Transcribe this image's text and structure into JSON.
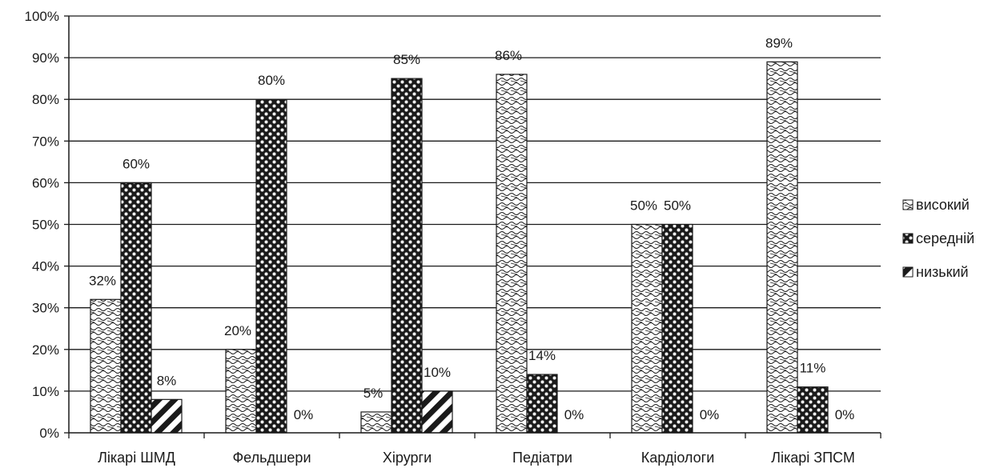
{
  "chart_data": {
    "type": "bar",
    "title": "",
    "xlabel": "",
    "ylabel": "",
    "ylim": [
      0,
      100
    ],
    "y_ticks": [
      0,
      10,
      20,
      30,
      40,
      50,
      60,
      70,
      80,
      90,
      100
    ],
    "y_tick_labels": [
      "0%",
      "10%",
      "20%",
      "30%",
      "40%",
      "50%",
      "60%",
      "70%",
      "80%",
      "90%",
      "100%"
    ],
    "grid": "horizontal",
    "legend_position": "right",
    "categories": [
      "Лікарі ШМД",
      "Фельдшери",
      "Хірурги",
      "Педіатри",
      "Кардіологи",
      "Лікарі ЗПСМ"
    ],
    "series": [
      {
        "name": "високий",
        "pattern": "wave",
        "values": [
          32,
          20,
          5,
          86,
          50,
          89
        ],
        "labels": [
          "32%",
          "20%",
          "5%",
          "86%",
          "50%",
          "89%"
        ]
      },
      {
        "name": "середній",
        "pattern": "checker-dots",
        "values": [
          60,
          80,
          85,
          14,
          50,
          11
        ],
        "labels": [
          "60%",
          "80%",
          "85%",
          "14%",
          "50%",
          "11%"
        ]
      },
      {
        "name": "низький",
        "pattern": "diagonal",
        "values": [
          8,
          0,
          10,
          0,
          0,
          0
        ],
        "labels": [
          "8%",
          "0%",
          "10%",
          "0%",
          "0%",
          "0%"
        ]
      }
    ],
    "colors": {
      "ink": "#1a1a1a",
      "background": "#ffffff"
    }
  }
}
